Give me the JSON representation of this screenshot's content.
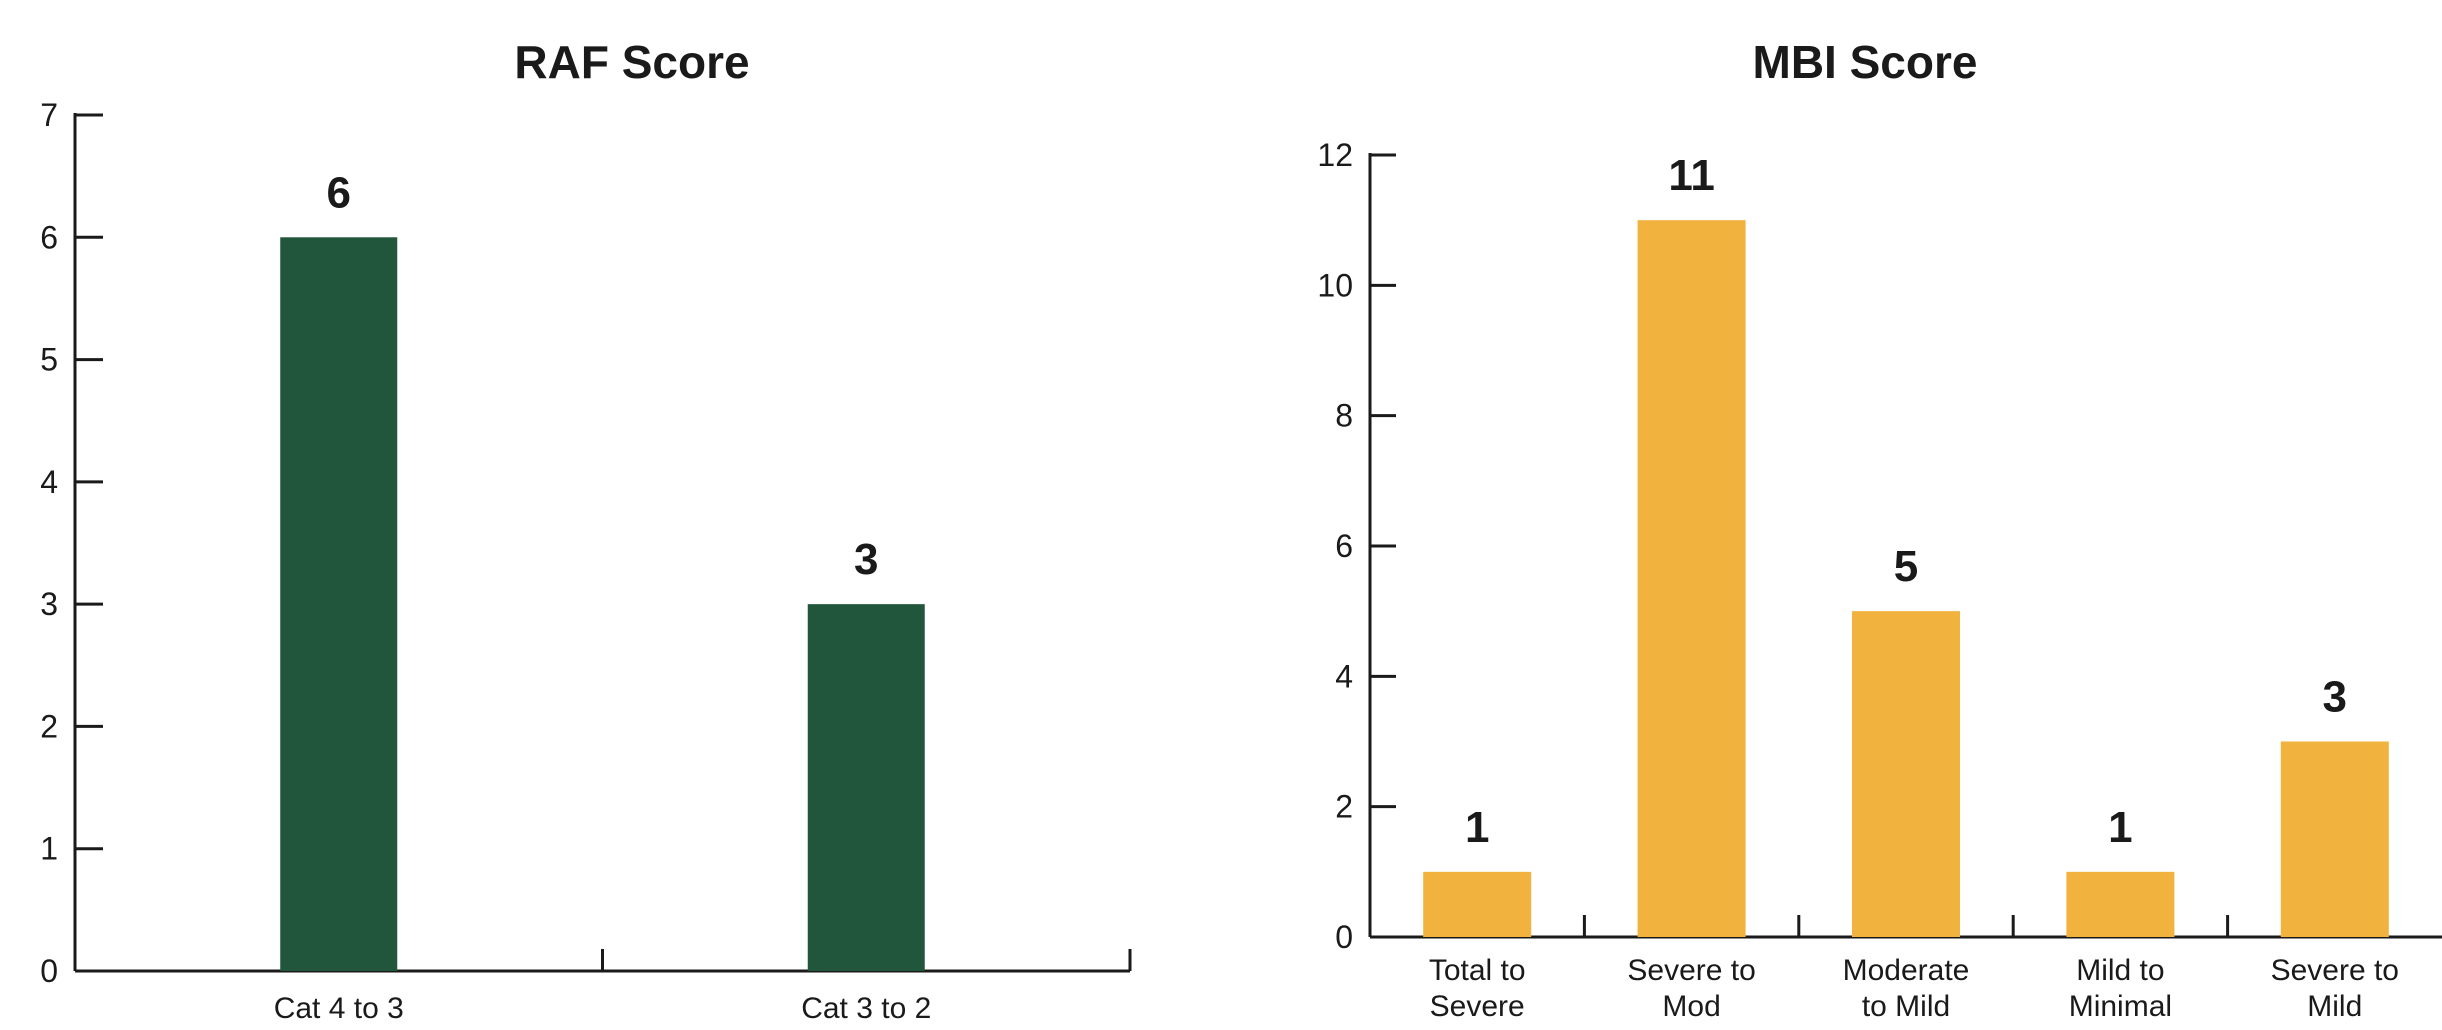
{
  "chart_data": [
    {
      "type": "bar",
      "title": "RAF Score",
      "xlabel": "",
      "ylabel": "",
      "categories": [
        [
          "Cat 4 to 3"
        ],
        [
          "Cat 3 to 2"
        ]
      ],
      "values": [
        6,
        3
      ],
      "ylim": [
        0,
        7
      ],
      "yticks": [
        0,
        1,
        2,
        3,
        4,
        5,
        6,
        7
      ],
      "bar_color": "#21563d",
      "grid": false,
      "legend": "none"
    },
    {
      "type": "bar",
      "title": "MBI Score",
      "xlabel": "",
      "ylabel": "",
      "categories": [
        [
          "Total to",
          "Severe"
        ],
        [
          "Severe to",
          "Mod"
        ],
        [
          "Moderate",
          "to Mild"
        ],
        [
          "Mild to",
          "Minimal"
        ],
        [
          "Severe to",
          "Mild"
        ]
      ],
      "values": [
        1,
        11,
        5,
        1,
        3
      ],
      "ylim": [
        0,
        12
      ],
      "yticks": [
        0,
        2,
        4,
        6,
        8,
        10,
        12
      ],
      "bar_color": "#f2b23e",
      "grid": false,
      "legend": "none"
    }
  ]
}
